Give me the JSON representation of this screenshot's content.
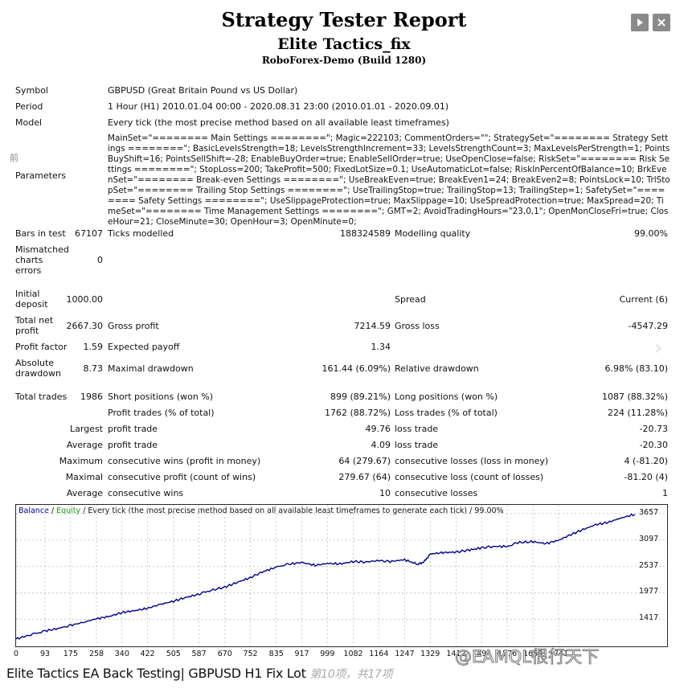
{
  "header": {
    "title": "Strategy Tester Report",
    "ea_name": "Elite Tactics_fix",
    "server": "RoboForex-Demo (Build 1280)"
  },
  "controls": {
    "play_icon": "play-icon",
    "close_icon": "close-icon"
  },
  "side_glyph": "前",
  "info": {
    "symbol_label": "Symbol",
    "symbol_value": "GBPUSD (Great Britain Pound vs US Dollar)",
    "period_label": "Period",
    "period_value": "1 Hour (H1) 2010.01.04 00:00 - 2020.08.31 23:00 (2010.01.01 - 2020.09.01)",
    "model_label": "Model",
    "model_value": "Every tick (the most precise method based on all available least timeframes)",
    "parameters_label": "Parameters",
    "parameters_value": "MainSet=\"======== Main Settings ========\"; Magic=222103; CommentOrders=\"\"; StrategySet=\"======== Strategy Settings ========\"; BasicLevelsStrength=18; LevelsStrengthIncrement=33; LevelsStrengthCount=3; MaxLevelsPerStrength=1; PointsBuyShift=16; PointsSellShift=-28; EnableBuyOrder=true; EnableSellOrder=true; UseOpenClose=false; RiskSet=\"======== Risk Settings ========\"; StopLoss=200; TakeProfit=500; FixedLotSize=0.1; UseAutomaticLot=false; RiskInPercentOfBalance=10; BrkEvenSet=\"======== Break-even Settings ========\"; UseBreakEven=true; BreakEven1=24; BreakEven2=8; PointsLock=10; TrlStopSet=\"======== Trailing Stop Settings ========\"; UseTrailingStop=true; TrailingStop=13; TrailingStep=1; SafetySet=\"======== Safety Settings ========\"; UseSlippageProtection=true; MaxSlippage=10; UseSpreadProtection=true; MaxSpread=20; TimeSet=\"======== Time Management Settings ========\"; GMT=2; AvoidTradingHours=\"23,0,1\"; OpenMonCloseFri=true; CloseHour=21; CloseMinute=30; OpenHour=3; OpenMinute=0;"
  },
  "stats": {
    "bars_label": "Bars in test",
    "bars_value": "67107",
    "ticks_label": "Ticks modelled",
    "ticks_value": "188324589",
    "quality_label": "Modelling quality",
    "quality_value": "99.00%",
    "mismatch_label_1": "Mismatched",
    "mismatch_label_2": "charts",
    "mismatch_label_3": "errors",
    "mismatch_value": "0",
    "deposit_label_1": "Initial",
    "deposit_label_2": "deposit",
    "deposit_value": "1000.00",
    "spread_label": "Spread",
    "spread_value": "Current (6)",
    "net_label_1": "Total net",
    "net_label_2": "profit",
    "net_value": "2667.30",
    "gross_profit_label": "Gross profit",
    "gross_profit_value": "7214.59",
    "gross_loss_label": "Gross loss",
    "gross_loss_value": "-4547.29",
    "pf_label": "Profit factor",
    "pf_value": "1.59",
    "payoff_label": "Expected payoff",
    "payoff_value": "1.34",
    "abs_dd_label_1": "Absolute",
    "abs_dd_label_2": "drawdown",
    "abs_dd_value": "8.73",
    "max_dd_label": "Maximal drawdown",
    "max_dd_value": "161.44 (6.09%)",
    "rel_dd_label": "Relative drawdown",
    "rel_dd_value": "6.98% (83.10)",
    "trades_label": "Total trades",
    "trades_value": "1986",
    "short_label": "Short positions (won %)",
    "short_value": "899 (89.21%)",
    "long_label": "Long positions (won %)",
    "long_value": "1087 (88.32%)",
    "profit_trades_label": "Profit trades (% of total)",
    "profit_trades_value": "1762 (88.72%)",
    "loss_trades_label": "Loss trades (% of total)",
    "loss_trades_value": "224 (11.28%)",
    "largest_label": "Largest",
    "largest_profit_label": "profit trade",
    "largest_profit_value": "49.76",
    "largest_loss_label": "loss trade",
    "largest_loss_value": "-20.73",
    "average_label": "Average",
    "average_profit_label": "profit trade",
    "average_profit_value": "4.09",
    "average_loss_label": "loss trade",
    "average_loss_value": "-20.30",
    "maximum_label": "Maximum",
    "max_wins_label": "consecutive wins (profit in money)",
    "max_wins_value": "64 (279.67)",
    "max_losses_label": "consecutive losses (loss in money)",
    "max_losses_value": "4 (-81.20)",
    "maximal_label": "Maximal",
    "maximal_profit_label": "consecutive profit (count of wins)",
    "maximal_profit_value": "279.67 (64)",
    "maximal_loss_label": "consecutive loss (count of losses)",
    "maximal_loss_value": "-81.20 (4)",
    "average2_label": "Average",
    "avg_wins_label": "consecutive wins",
    "avg_wins_value": "10",
    "avg_losses_label": "consecutive losses",
    "avg_losses_value": "1"
  },
  "chart_data": {
    "type": "line",
    "legend_balance": "Balance",
    "legend_sep": " / ",
    "legend_equity": "Equity",
    "legend_rest": " / Every tick (the most precise method based on all available least timeframes to generate each tick) / 99.00%",
    "x_ticks": [
      0,
      93,
      175,
      258,
      340,
      422,
      505,
      587,
      670,
      752,
      835,
      917,
      999,
      1082,
      1164,
      1247,
      1329,
      1412,
      1494,
      1576,
      1659,
      1741
    ],
    "y_ticks": [
      1417,
      1977,
      2537,
      3097,
      3657
    ],
    "xlim": [
      0,
      1986
    ],
    "ylim": [
      845,
      3840
    ],
    "series": [
      {
        "color": "#00008b",
        "x": [
          0,
          40,
          93,
          140,
          175,
          220,
          258,
          300,
          340,
          380,
          422,
          460,
          505,
          545,
          587,
          620,
          670,
          710,
          752,
          790,
          835,
          870,
          917,
          960,
          999,
          1040,
          1082,
          1120,
          1164,
          1200,
          1247,
          1290,
          1310,
          1329,
          1370,
          1412,
          1450,
          1494,
          1530,
          1576,
          1610,
          1659,
          1700,
          1741,
          1780,
          1820,
          1860,
          1900,
          1940,
          1986
        ],
        "y": [
          1000,
          1080,
          1170,
          1230,
          1290,
          1360,
          1430,
          1480,
          1560,
          1600,
          1650,
          1730,
          1800,
          1880,
          1950,
          2020,
          2100,
          2200,
          2300,
          2420,
          2520,
          2580,
          2620,
          2560,
          2600,
          2590,
          2640,
          2630,
          2660,
          2640,
          2680,
          2580,
          2640,
          2800,
          2830,
          2840,
          2880,
          2930,
          2960,
          2960,
          3040,
          3060,
          3020,
          3090,
          3210,
          3320,
          3420,
          3470,
          3560,
          3640
        ]
      }
    ]
  },
  "caption": {
    "text": "Elite Tactics EA Back Testing| GBPUSD H1 Fix Lot ",
    "page": "第10项，共17项"
  },
  "watermark": "@EAMQL很行天下"
}
